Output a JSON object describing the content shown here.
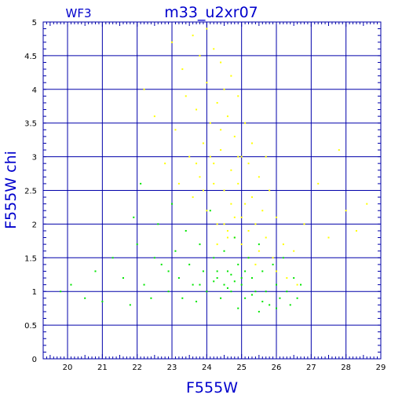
{
  "chart_data": {
    "type": "scatter",
    "title": "m33_u2xr07",
    "subtitle": "WF3",
    "xlabel": "F555W",
    "ylabel": "F555W chi",
    "xlim": [
      19.3,
      29
    ],
    "ylim": [
      0,
      5
    ],
    "x_ticks": [
      "20",
      "21",
      "22",
      "23",
      "24",
      "25",
      "26",
      "27",
      "28",
      "29"
    ],
    "y_ticks": [
      "0",
      "0.5",
      "1",
      "1.5",
      "2",
      "2.5",
      "3",
      "3.5",
      "4",
      "4.5",
      "5"
    ],
    "grid": true,
    "series": [
      {
        "color": "#ffff00",
        "points": [
          [
            22.2,
            4.0
          ],
          [
            22.5,
            3.6
          ],
          [
            22.8,
            2.9
          ],
          [
            23.0,
            4.7
          ],
          [
            23.1,
            3.4
          ],
          [
            23.2,
            2.6
          ],
          [
            23.3,
            4.3
          ],
          [
            23.4,
            3.9
          ],
          [
            23.5,
            3.0
          ],
          [
            23.6,
            4.8
          ],
          [
            23.6,
            2.4
          ],
          [
            23.7,
            3.7
          ],
          [
            23.8,
            4.5
          ],
          [
            23.8,
            2.7
          ],
          [
            23.9,
            3.2
          ],
          [
            24.0,
            4.9
          ],
          [
            24.0,
            4.1
          ],
          [
            24.0,
            2.2
          ],
          [
            24.1,
            3.5
          ],
          [
            24.2,
            4.6
          ],
          [
            24.2,
            2.9
          ],
          [
            24.3,
            3.8
          ],
          [
            24.3,
            2.0
          ],
          [
            24.4,
            4.4
          ],
          [
            24.4,
            3.1
          ],
          [
            24.5,
            4.0
          ],
          [
            24.5,
            2.5
          ],
          [
            24.6,
            3.6
          ],
          [
            24.6,
            1.8
          ],
          [
            24.7,
            4.2
          ],
          [
            24.7,
            2.8
          ],
          [
            24.8,
            3.3
          ],
          [
            24.8,
            2.1
          ],
          [
            24.9,
            3.9
          ],
          [
            24.9,
            2.6
          ],
          [
            25.0,
            3.0
          ],
          [
            25.0,
            1.7
          ],
          [
            25.1,
            3.5
          ],
          [
            25.1,
            2.3
          ],
          [
            25.2,
            2.9
          ],
          [
            25.2,
            1.9
          ],
          [
            25.3,
            3.2
          ],
          [
            25.3,
            2.4
          ],
          [
            25.4,
            2.0
          ],
          [
            25.5,
            2.7
          ],
          [
            25.5,
            1.6
          ],
          [
            25.6,
            2.2
          ],
          [
            25.7,
            3.0
          ],
          [
            25.7,
            1.8
          ],
          [
            25.8,
            2.5
          ],
          [
            25.9,
            1.5
          ],
          [
            26.0,
            2.1
          ],
          [
            26.0,
            1.3
          ],
          [
            26.2,
            1.7
          ],
          [
            26.3,
            1.2
          ],
          [
            26.5,
            1.6
          ],
          [
            26.6,
            1.1
          ],
          [
            26.8,
            2.0
          ],
          [
            27.2,
            2.6
          ],
          [
            27.5,
            1.8
          ],
          [
            27.8,
            3.1
          ],
          [
            28.0,
            2.2
          ],
          [
            28.3,
            1.9
          ],
          [
            28.6,
            2.3
          ],
          [
            24.5,
            2.0
          ],
          [
            24.6,
            1.9
          ],
          [
            24.8,
            1.8
          ],
          [
            24.3,
            1.7
          ],
          [
            25.0,
            2.1
          ],
          [
            25.2,
            1.5
          ],
          [
            25.4,
            1.4
          ],
          [
            24.7,
            2.3
          ],
          [
            23.9,
            2.5
          ],
          [
            24.2,
            2.6
          ],
          [
            24.1,
            3.0
          ],
          [
            23.7,
            2.9
          ],
          [
            24.4,
            3.4
          ],
          [
            24.9,
            3.0
          ]
        ]
      },
      {
        "color": "#00e600",
        "points": [
          [
            19.8,
            1.0
          ],
          [
            20.1,
            1.1
          ],
          [
            20.5,
            0.9
          ],
          [
            20.8,
            1.3
          ],
          [
            21.0,
            0.85
          ],
          [
            21.3,
            1.5
          ],
          [
            21.6,
            1.2
          ],
          [
            21.8,
            0.8
          ],
          [
            22.0,
            1.7
          ],
          [
            22.2,
            1.1
          ],
          [
            22.4,
            0.9
          ],
          [
            22.6,
            2.0
          ],
          [
            22.7,
            1.4
          ],
          [
            22.9,
            1.0
          ],
          [
            23.0,
            2.3
          ],
          [
            23.1,
            1.6
          ],
          [
            23.2,
            1.2
          ],
          [
            23.3,
            0.9
          ],
          [
            23.4,
            1.9
          ],
          [
            23.5,
            1.4
          ],
          [
            23.6,
            1.1
          ],
          [
            23.7,
            0.85
          ],
          [
            23.8,
            1.7
          ],
          [
            23.9,
            1.3
          ],
          [
            24.0,
            1.0
          ],
          [
            24.1,
            2.2
          ],
          [
            24.2,
            1.5
          ],
          [
            24.3,
            1.2
          ],
          [
            24.4,
            0.9
          ],
          [
            24.5,
            1.6
          ],
          [
            24.6,
            1.3
          ],
          [
            24.7,
            1.0
          ],
          [
            24.8,
            1.8
          ],
          [
            24.9,
            1.4
          ],
          [
            25.0,
            1.1
          ],
          [
            25.1,
            0.9
          ],
          [
            25.2,
            1.5
          ],
          [
            25.3,
            1.2
          ],
          [
            25.4,
            1.0
          ],
          [
            25.5,
            1.7
          ],
          [
            25.6,
            1.3
          ],
          [
            25.7,
            1.0
          ],
          [
            25.8,
            0.8
          ],
          [
            25.9,
            1.4
          ],
          [
            26.0,
            1.1
          ],
          [
            26.1,
            0.9
          ],
          [
            26.2,
            1.5
          ],
          [
            26.3,
            1.0
          ],
          [
            26.4,
            0.8
          ],
          [
            26.5,
            1.2
          ],
          [
            26.6,
            0.9
          ],
          [
            26.7,
            1.1
          ],
          [
            24.5,
            1.1
          ],
          [
            24.6,
            1.05
          ],
          [
            24.8,
            1.15
          ],
          [
            25.0,
            1.2
          ],
          [
            24.2,
            1.15
          ],
          [
            23.8,
            1.1
          ],
          [
            25.3,
            0.95
          ],
          [
            25.6,
            0.85
          ],
          [
            24.9,
            0.75
          ],
          [
            25.5,
            0.7
          ],
          [
            26.0,
            0.75
          ],
          [
            22.9,
            1.3
          ],
          [
            22.5,
            1.5
          ],
          [
            21.9,
            2.1
          ],
          [
            22.1,
            2.6
          ],
          [
            24.3,
            1.3
          ],
          [
            24.7,
            1.25
          ],
          [
            25.1,
            1.3
          ]
        ]
      }
    ]
  }
}
